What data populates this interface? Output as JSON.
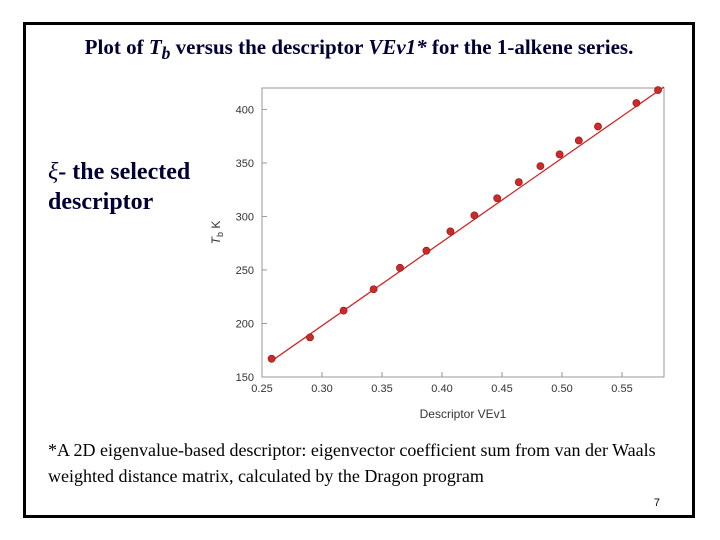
{
  "slide": {
    "title_prefix": "Plot of ",
    "title_var": "T",
    "title_sub": "b",
    "title_mid": " versus the descriptor ",
    "title_desc": "VEv1*",
    "title_suffix": " for the 1-alkene series.",
    "side_symbol": "ξ",
    "side_text": "- the selected descriptor",
    "footnote": "*A 2D eigenvalue-based descriptor: eigenvector coefficient sum from van der Waals weighted distance matrix, calculated by the Dragon program",
    "page_number": "7"
  },
  "chart_data": {
    "type": "scatter",
    "xlabel": "Descriptor VEv1",
    "ylabel_main": "T",
    "ylabel_sub": "b",
    "ylabel_unit": " K",
    "xlim": [
      0.25,
      0.585
    ],
    "ylim": [
      150,
      420
    ],
    "xticks": [
      "0.25",
      "0.30",
      "0.35",
      "0.40",
      "0.45",
      "0.50",
      "0.55"
    ],
    "yticks": [
      "150",
      "200",
      "250",
      "300",
      "350",
      "400"
    ],
    "grid": false,
    "colors": {
      "point": "#cc2a2a",
      "point_edge": "#8a1414",
      "line": "#cc2a2a",
      "axis": "#999999"
    },
    "x": [
      0.258,
      0.29,
      0.318,
      0.343,
      0.365,
      0.387,
      0.407,
      0.427,
      0.446,
      0.464,
      0.482,
      0.498,
      0.514,
      0.53,
      0.562,
      0.58
    ],
    "y": [
      167,
      187,
      212,
      232,
      252,
      268,
      286,
      301,
      317,
      332,
      347,
      358,
      371,
      384,
      406,
      418
    ],
    "fit_line": {
      "x": [
        0.258,
        0.585
      ],
      "y": [
        165,
        421
      ]
    }
  }
}
